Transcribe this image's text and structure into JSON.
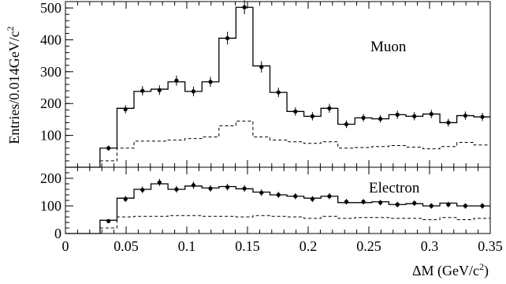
{
  "chart_data": [
    {
      "type": "histogram",
      "panel_label": "Muon",
      "ylabel": "Entries/0.014GeV/c",
      "ylabel_sup": "2",
      "ylim": [
        0,
        520
      ],
      "yticks": [
        100,
        200,
        300,
        400,
        500
      ],
      "xlim": [
        0,
        0.35
      ],
      "bin_edges": [
        0.0285,
        0.0425,
        0.0565,
        0.0705,
        0.0845,
        0.0985,
        0.1125,
        0.1265,
        0.1405,
        0.1545,
        0.1685,
        0.1825,
        0.1965,
        0.2105,
        0.2245,
        0.2385,
        0.2525,
        0.2665,
        0.2805,
        0.2945,
        0.3085,
        0.3225,
        0.3365,
        0.35
      ],
      "series": [
        {
          "style": "data-points",
          "x": [
            0.0355,
            0.0495,
            0.0635,
            0.0775,
            0.0915,
            0.1055,
            0.1195,
            0.1335,
            0.1475,
            0.1615,
            0.1755,
            0.1895,
            0.2035,
            0.2175,
            0.2315,
            0.2455,
            0.2595,
            0.2735,
            0.2875,
            0.3015,
            0.3155,
            0.3295,
            0.3435
          ],
          "y": [
            60,
            182,
            240,
            242,
            272,
            238,
            268,
            405,
            502,
            315,
            235,
            175,
            160,
            185,
            135,
            155,
            152,
            165,
            160,
            167,
            140,
            162,
            158
          ],
          "err": [
            8,
            13,
            15,
            15,
            16,
            15,
            16,
            20,
            22,
            18,
            15,
            13,
            13,
            14,
            12,
            12,
            12,
            13,
            13,
            13,
            12,
            13,
            13
          ]
        },
        {
          "style": "fit-solid",
          "values": [
            60,
            185,
            238,
            245,
            268,
            238,
            268,
            405,
            502,
            318,
            235,
            175,
            160,
            185,
            135,
            155,
            152,
            165,
            160,
            167,
            140,
            162,
            158
          ]
        },
        {
          "style": "background-dashed",
          "values": [
            20,
            60,
            82,
            82,
            85,
            90,
            95,
            130,
            145,
            95,
            85,
            80,
            75,
            80,
            60,
            62,
            65,
            68,
            63,
            58,
            65,
            78,
            70
          ]
        }
      ]
    },
    {
      "type": "histogram",
      "panel_label": "Electron",
      "ylim": [
        0,
        240
      ],
      "yticks": [
        0,
        100,
        200
      ],
      "xlabel": "ΔM (GeV/c",
      "xlabel_sup": "2",
      "xlabel_close": ")",
      "xlim": [
        0,
        0.35
      ],
      "xticks": [
        0,
        0.05,
        0.1,
        0.15,
        0.2,
        0.25,
        0.3,
        0.35
      ],
      "xticklabels": [
        "0",
        "0.05",
        "0.1",
        "0.15",
        "0.2",
        "0.25",
        "0.3",
        "0.35"
      ],
      "bin_edges": [
        0.0285,
        0.0425,
        0.0565,
        0.0705,
        0.0845,
        0.0985,
        0.1125,
        0.1265,
        0.1405,
        0.1545,
        0.1685,
        0.1825,
        0.1965,
        0.2105,
        0.2245,
        0.2385,
        0.2525,
        0.2665,
        0.2805,
        0.2945,
        0.3085,
        0.3225,
        0.3365,
        0.35
      ],
      "series": [
        {
          "style": "data-points",
          "x": [
            0.0355,
            0.0495,
            0.0635,
            0.0775,
            0.0915,
            0.1055,
            0.1195,
            0.1335,
            0.1475,
            0.1615,
            0.1755,
            0.1895,
            0.2035,
            0.2175,
            0.2315,
            0.2455,
            0.2595,
            0.2735,
            0.2875,
            0.3015,
            0.3155,
            0.3295,
            0.3435
          ],
          "y": [
            45,
            125,
            158,
            185,
            160,
            175,
            163,
            168,
            163,
            148,
            140,
            135,
            125,
            135,
            115,
            115,
            112,
            105,
            110,
            100,
            105,
            100,
            100
          ],
          "err": [
            7,
            11,
            12,
            13,
            12,
            13,
            12,
            12,
            12,
            12,
            11,
            11,
            11,
            11,
            10,
            10,
            10,
            10,
            10,
            10,
            10,
            10,
            10
          ]
        },
        {
          "style": "fit-solid",
          "values": [
            48,
            128,
            160,
            180,
            160,
            172,
            165,
            170,
            162,
            150,
            140,
            135,
            128,
            135,
            112,
            112,
            115,
            105,
            108,
            100,
            110,
            100,
            100
          ]
        },
        {
          "style": "background-dashed",
          "values": [
            20,
            60,
            62,
            62,
            65,
            65,
            62,
            62,
            60,
            65,
            62,
            60,
            55,
            62,
            55,
            58,
            58,
            55,
            55,
            50,
            58,
            50,
            55
          ]
        }
      ]
    }
  ]
}
